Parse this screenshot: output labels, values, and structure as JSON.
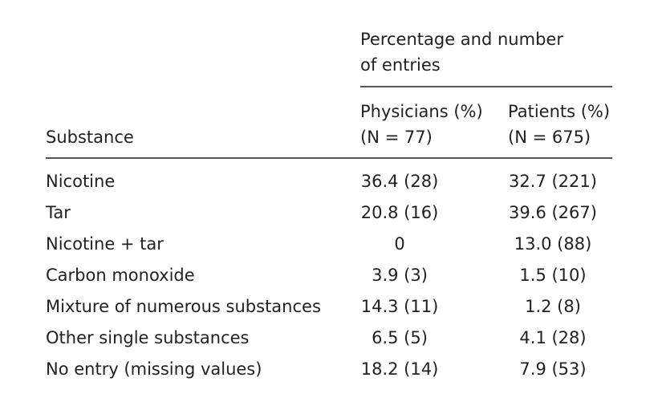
{
  "table": {
    "group_header": [
      "Percentage and number",
      "of entries"
    ],
    "columns": [
      "Substance",
      "Physicians (%)",
      "Patients (%)"
    ],
    "column_notes": [
      "(N = 77)",
      "(N = 675)"
    ],
    "rows": [
      [
        "Nicotine",
        "36.4 (28)",
        "32.7 (221)"
      ],
      [
        "Tar",
        "20.8 (16)",
        "39.6 (267)"
      ],
      [
        "Nicotine + tar",
        "0",
        "13.0 (88)"
      ],
      [
        "Carbon monoxide",
        "3.9 (3)",
        "1.5 (10)"
      ],
      [
        "Mixture of numerous substances",
        "14.3 (11)",
        "1.2 (8)"
      ],
      [
        "Other single substances",
        "6.5 (5)",
        "4.1 (28)"
      ],
      [
        "No entry (missing values)",
        "18.2 (14)",
        "7.9 (53)"
      ]
    ]
  }
}
